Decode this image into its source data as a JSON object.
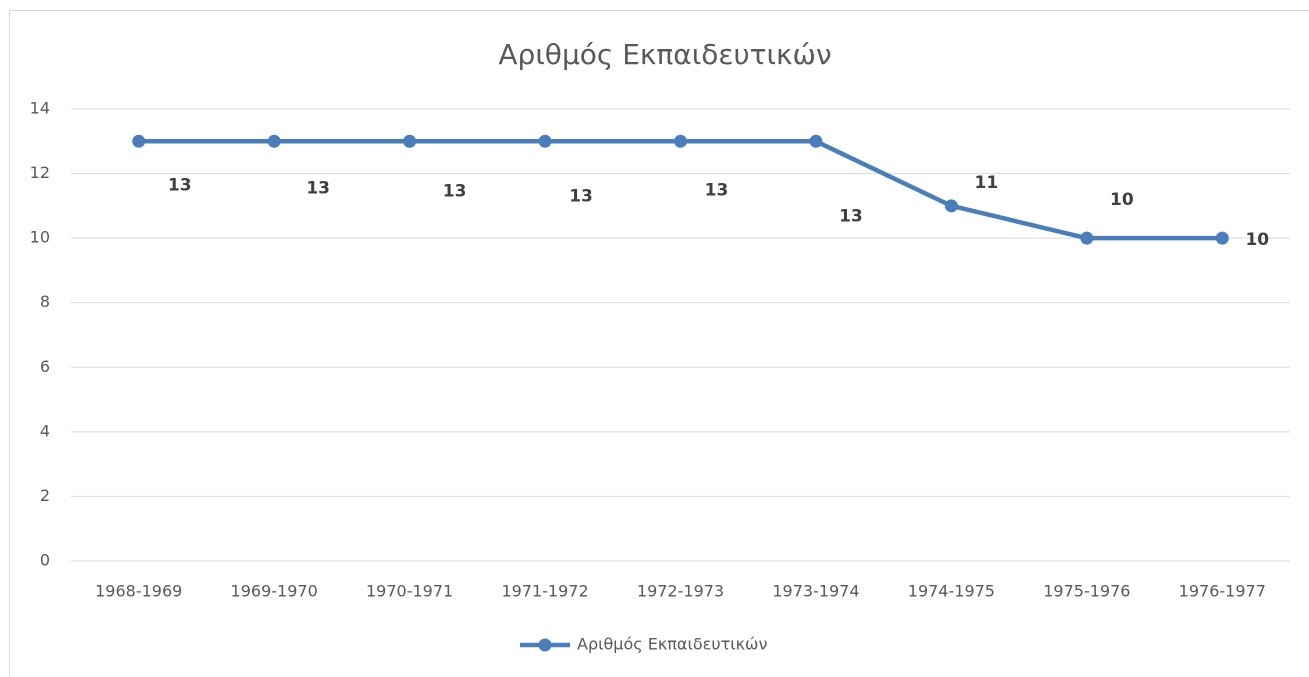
{
  "chart_data": {
    "type": "line",
    "title": "Αριθμός Εκπαιδευτικών",
    "categories": [
      "1968-1969",
      "1969-1970",
      "1970-1971",
      "1971-1972",
      "1972-1973",
      "1973-1974",
      "1974-1975",
      "1975-1976",
      "1976-1977"
    ],
    "series": [
      {
        "name": "Αριθμός Εκπαιδευτικών",
        "color": "#4a7ebb",
        "values": [
          13,
          13,
          13,
          13,
          13,
          13,
          11,
          10,
          10
        ]
      }
    ],
    "ylim": [
      0,
      14
    ],
    "yticks": [
      0,
      2,
      4,
      6,
      8,
      10,
      12,
      14
    ],
    "grid": true,
    "legend": "bottom",
    "data_labels": true
  }
}
